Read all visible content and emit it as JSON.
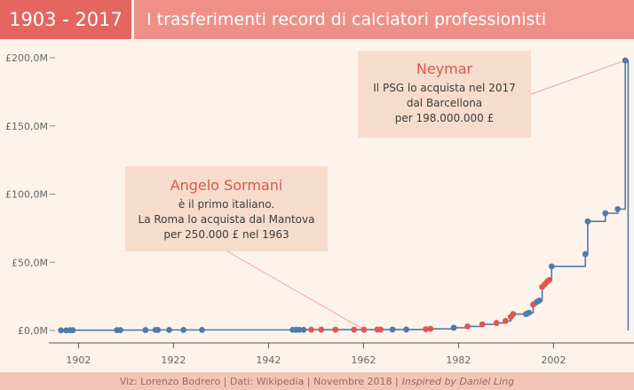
{
  "header": {
    "years": "1903 - 2017",
    "title": "I trasferimenti record di calciatori professionisti"
  },
  "footer": {
    "credits": "Viz: Lorenzo Bodrero | Dati: Wikipedia | Novembre  2018 |",
    "inspired": "Inspired by Daniel Ling"
  },
  "annotations": {
    "neymar": {
      "name": "Neymar",
      "lines": [
        "Il PSG lo  acquista nel 2017",
        "dal Barcellona",
        "per 198.000.000 £"
      ]
    },
    "sormani": {
      "name": "Angelo Sormani",
      "lines": [
        "è il primo italiano.",
        "La Roma lo acquista dal Mantova",
        "per 250.000 £ nel 1963"
      ]
    }
  },
  "colors": {
    "line": "#4f7bab",
    "dot_blue": "#4f7bab",
    "dot_red": "#e05656",
    "header": "#ef9088",
    "header_years": "#e4665e",
    "annotation_text": "#d9574f",
    "background": "#fdf3ea"
  },
  "chart_data": {
    "type": "line",
    "step": true,
    "xlim": [
      1898,
      2018
    ],
    "ylim": [
      0,
      200
    ],
    "x_ticks": [
      1902,
      1922,
      1942,
      1962,
      1982,
      2002
    ],
    "y_ticks": [
      {
        "value": 0,
        "label": "£0,0M"
      },
      {
        "value": 50,
        "label": "£50,0M"
      },
      {
        "value": 100,
        "label": "£100,0M"
      },
      {
        "value": 150,
        "label": "£150,0M"
      },
      {
        "value": 200,
        "label": "£200,0M"
      }
    ],
    "points": [
      {
        "x": 1898.3,
        "y": 0.1,
        "italian": false
      },
      {
        "x": 1899.4,
        "y": 0.1,
        "italian": false
      },
      {
        "x": 1900.2,
        "y": 0.2,
        "italian": false
      },
      {
        "x": 1900.8,
        "y": 0.2,
        "italian": false
      },
      {
        "x": 1910.1,
        "y": 0.3,
        "italian": false
      },
      {
        "x": 1910.8,
        "y": 0.3,
        "italian": false
      },
      {
        "x": 1916.1,
        "y": 0.3,
        "italian": false
      },
      {
        "x": 1918.2,
        "y": 0.4,
        "italian": false
      },
      {
        "x": 1918.7,
        "y": 0.4,
        "italian": false
      },
      {
        "x": 1921.1,
        "y": 0.4,
        "italian": false
      },
      {
        "x": 1924.1,
        "y": 0.4,
        "italian": false
      },
      {
        "x": 1928.0,
        "y": 0.4,
        "italian": false
      },
      {
        "x": 1947.1,
        "y": 0.5,
        "italian": false
      },
      {
        "x": 1947.8,
        "y": 0.5,
        "italian": false
      },
      {
        "x": 1948.5,
        "y": 0.5,
        "italian": false
      },
      {
        "x": 1949.4,
        "y": 0.5,
        "italian": false
      },
      {
        "x": 1951.0,
        "y": 0.6,
        "italian": true
      },
      {
        "x": 1953.1,
        "y": 0.6,
        "italian": true
      },
      {
        "x": 1956.1,
        "y": 0.6,
        "italian": true
      },
      {
        "x": 1960.0,
        "y": 0.6,
        "italian": true
      },
      {
        "x": 1962.1,
        "y": 0.6,
        "italian": true
      },
      {
        "x": 1964.9,
        "y": 0.7,
        "italian": true
      },
      {
        "x": 1965.6,
        "y": 0.7,
        "italian": true
      },
      {
        "x": 1968.1,
        "y": 0.7,
        "italian": false
      },
      {
        "x": 1971.0,
        "y": 0.7,
        "italian": false
      },
      {
        "x": 1975.1,
        "y": 0.9,
        "italian": true
      },
      {
        "x": 1976.1,
        "y": 1.2,
        "italian": true
      },
      {
        "x": 1981.0,
        "y": 2.0,
        "italian": false
      },
      {
        "x": 1983.9,
        "y": 3.0,
        "italian": true
      },
      {
        "x": 1987.0,
        "y": 4.5,
        "italian": true
      },
      {
        "x": 1990.0,
        "y": 5.5,
        "italian": true
      },
      {
        "x": 1991.9,
        "y": 7.0,
        "italian": true
      },
      {
        "x": 1993.0,
        "y": 10.0,
        "italian": true
      },
      {
        "x": 1993.5,
        "y": 12.0,
        "italian": true
      },
      {
        "x": 1996.2,
        "y": 12.0,
        "italian": false
      },
      {
        "x": 1996.8,
        "y": 13.0,
        "italian": false
      },
      {
        "x": 1997.7,
        "y": 19.0,
        "italian": true
      },
      {
        "x": 1998.5,
        "y": 21.0,
        "italian": false
      },
      {
        "x": 1999.0,
        "y": 22.0,
        "italian": false
      },
      {
        "x": 1999.6,
        "y": 32.0,
        "italian": true
      },
      {
        "x": 2000.2,
        "y": 34.0,
        "italian": true
      },
      {
        "x": 2000.7,
        "y": 36.0,
        "italian": true
      },
      {
        "x": 2001.1,
        "y": 37.0,
        "italian": true
      },
      {
        "x": 2001.6,
        "y": 47.0,
        "italian": false
      },
      {
        "x": 2008.7,
        "y": 56.0,
        "italian": false
      },
      {
        "x": 2009.2,
        "y": 80.0,
        "italian": false
      },
      {
        "x": 2012.9,
        "y": 86.0,
        "italian": false
      },
      {
        "x": 2015.5,
        "y": 89.0,
        "italian": false
      },
      {
        "x": 2017.1,
        "y": 198.0,
        "italian": false
      }
    ]
  }
}
